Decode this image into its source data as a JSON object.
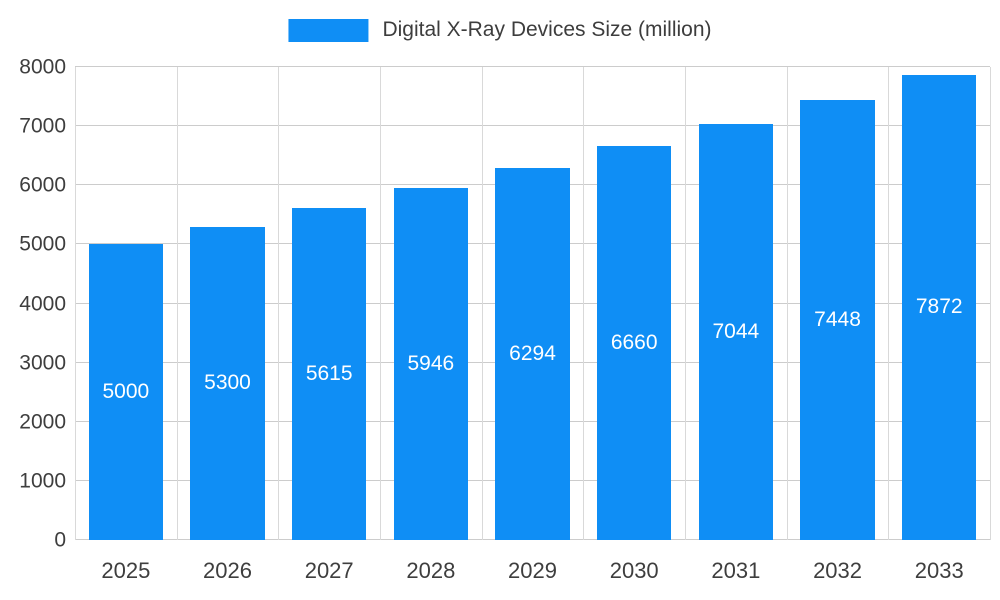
{
  "chart_data": {
    "type": "bar",
    "title": "Digital X-Ray Devices Size (million)",
    "categories": [
      "2025",
      "2026",
      "2027",
      "2028",
      "2029",
      "2030",
      "2031",
      "2032",
      "2033"
    ],
    "values": [
      5000,
      5300,
      5615,
      5946,
      6294,
      6660,
      7044,
      7448,
      7872
    ],
    "series": [
      {
        "name": "Digital X-Ray Devices Size (million)",
        "values": [
          5000,
          5300,
          5615,
          5946,
          6294,
          6660,
          7044,
          7448,
          7872
        ]
      }
    ],
    "xlabel": "",
    "ylabel": "",
    "ylim": [
      0,
      8000
    ],
    "yticks": [
      0,
      1000,
      2000,
      3000,
      4000,
      5000,
      6000,
      7000,
      8000
    ],
    "grid": true,
    "legend_position": "top",
    "data_labels": "inside-center"
  },
  "legend": {
    "label": "Digital X-Ray Devices Size (million)"
  },
  "colors": {
    "accent": "#0f8ef5",
    "grid_h": "#cccccc",
    "grid_v": "#d9d9d9",
    "axis_text": "#3e3e3e",
    "value_label": "#ffffff",
    "background": "#ffffff"
  }
}
